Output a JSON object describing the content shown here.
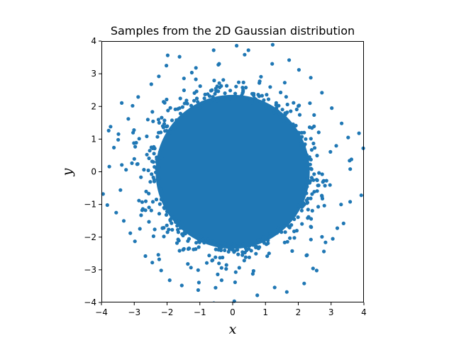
{
  "chart_data": {
    "type": "scatter",
    "title": "Samples from the 2D Gaussian distribution",
    "xlabel": "x",
    "ylabel": "y",
    "xlim": [
      -4,
      4
    ],
    "ylim": [
      -4,
      4
    ],
    "xticks": [
      -4,
      -3,
      -2,
      -1,
      0,
      1,
      2,
      3,
      4
    ],
    "yticks": [
      -4,
      -3,
      -2,
      -1,
      0,
      1,
      2,
      3,
      4
    ],
    "xtick_labels": [
      "−4",
      "−3",
      "−2",
      "−1",
      "0",
      "1",
      "2",
      "3",
      "4"
    ],
    "ytick_labels": [
      "−4",
      "−3",
      "−2",
      "−1",
      "0",
      "1",
      "2",
      "3",
      "4"
    ],
    "grid": false,
    "legend": false,
    "aspect": "equal",
    "series": [
      {
        "distribution": "standard bivariate normal",
        "mean": [
          0,
          0
        ],
        "std": [
          1,
          1
        ],
        "marker": "circle",
        "color": "#1f77b4",
        "points": [
          [
            -3.95,
            -0.68
          ],
          [
            -3.82,
            -1.02
          ],
          [
            -3.78,
            1.26
          ],
          [
            -3.72,
            1.38
          ],
          [
            -3.62,
            0.74
          ],
          [
            -3.55,
            -1.25
          ],
          [
            -3.49,
            0.98
          ],
          [
            -3.42,
            -0.56
          ],
          [
            -3.38,
            0.21
          ],
          [
            -3.25,
            0.06
          ],
          [
            -3.18,
            1.62
          ],
          [
            -3.12,
            -1.88
          ],
          [
            -3.05,
            2.02
          ],
          [
            -2.98,
            -2.13
          ],
          [
            -2.88,
            2.29
          ],
          [
            -2.66,
            -2.58
          ],
          [
            -2.48,
            2.68
          ],
          [
            -2.45,
            -2.78
          ],
          [
            -2.25,
            2.92
          ],
          [
            -2.18,
            -3.02
          ],
          [
            -2.02,
            3.25
          ],
          [
            -1.92,
            -3.32
          ],
          [
            -1.62,
            3.52
          ],
          [
            -1.55,
            -3.48
          ],
          [
            -1.12,
            3.18
          ],
          [
            -1.05,
            -3.62
          ],
          [
            -0.58,
            3.72
          ],
          [
            -0.52,
            -3.55
          ],
          [
            0.12,
            3.86
          ],
          [
            0.05,
            -3.96
          ],
          [
            0.48,
            3.72
          ],
          [
            0.75,
            -3.78
          ],
          [
            1.22,
            3.89
          ],
          [
            1.28,
            -3.54
          ],
          [
            1.72,
            3.42
          ],
          [
            1.65,
            -3.68
          ],
          [
            2.02,
            3.12
          ],
          [
            2.18,
            -3.42
          ],
          [
            2.38,
            2.88
          ],
          [
            2.45,
            -2.96
          ],
          [
            2.72,
            2.42
          ],
          [
            2.78,
            -2.44
          ],
          [
            3.02,
            1.95
          ],
          [
            3.05,
            -2.05
          ],
          [
            3.32,
            1.48
          ],
          [
            3.38,
            -1.58
          ],
          [
            3.52,
            1.05
          ],
          [
            3.58,
            -0.92
          ],
          [
            3.62,
            0.38
          ],
          [
            3.85,
            1.18
          ],
          [
            3.92,
            -0.72
          ],
          [
            3.98,
            0.72
          ]
        ]
      }
    ]
  }
}
